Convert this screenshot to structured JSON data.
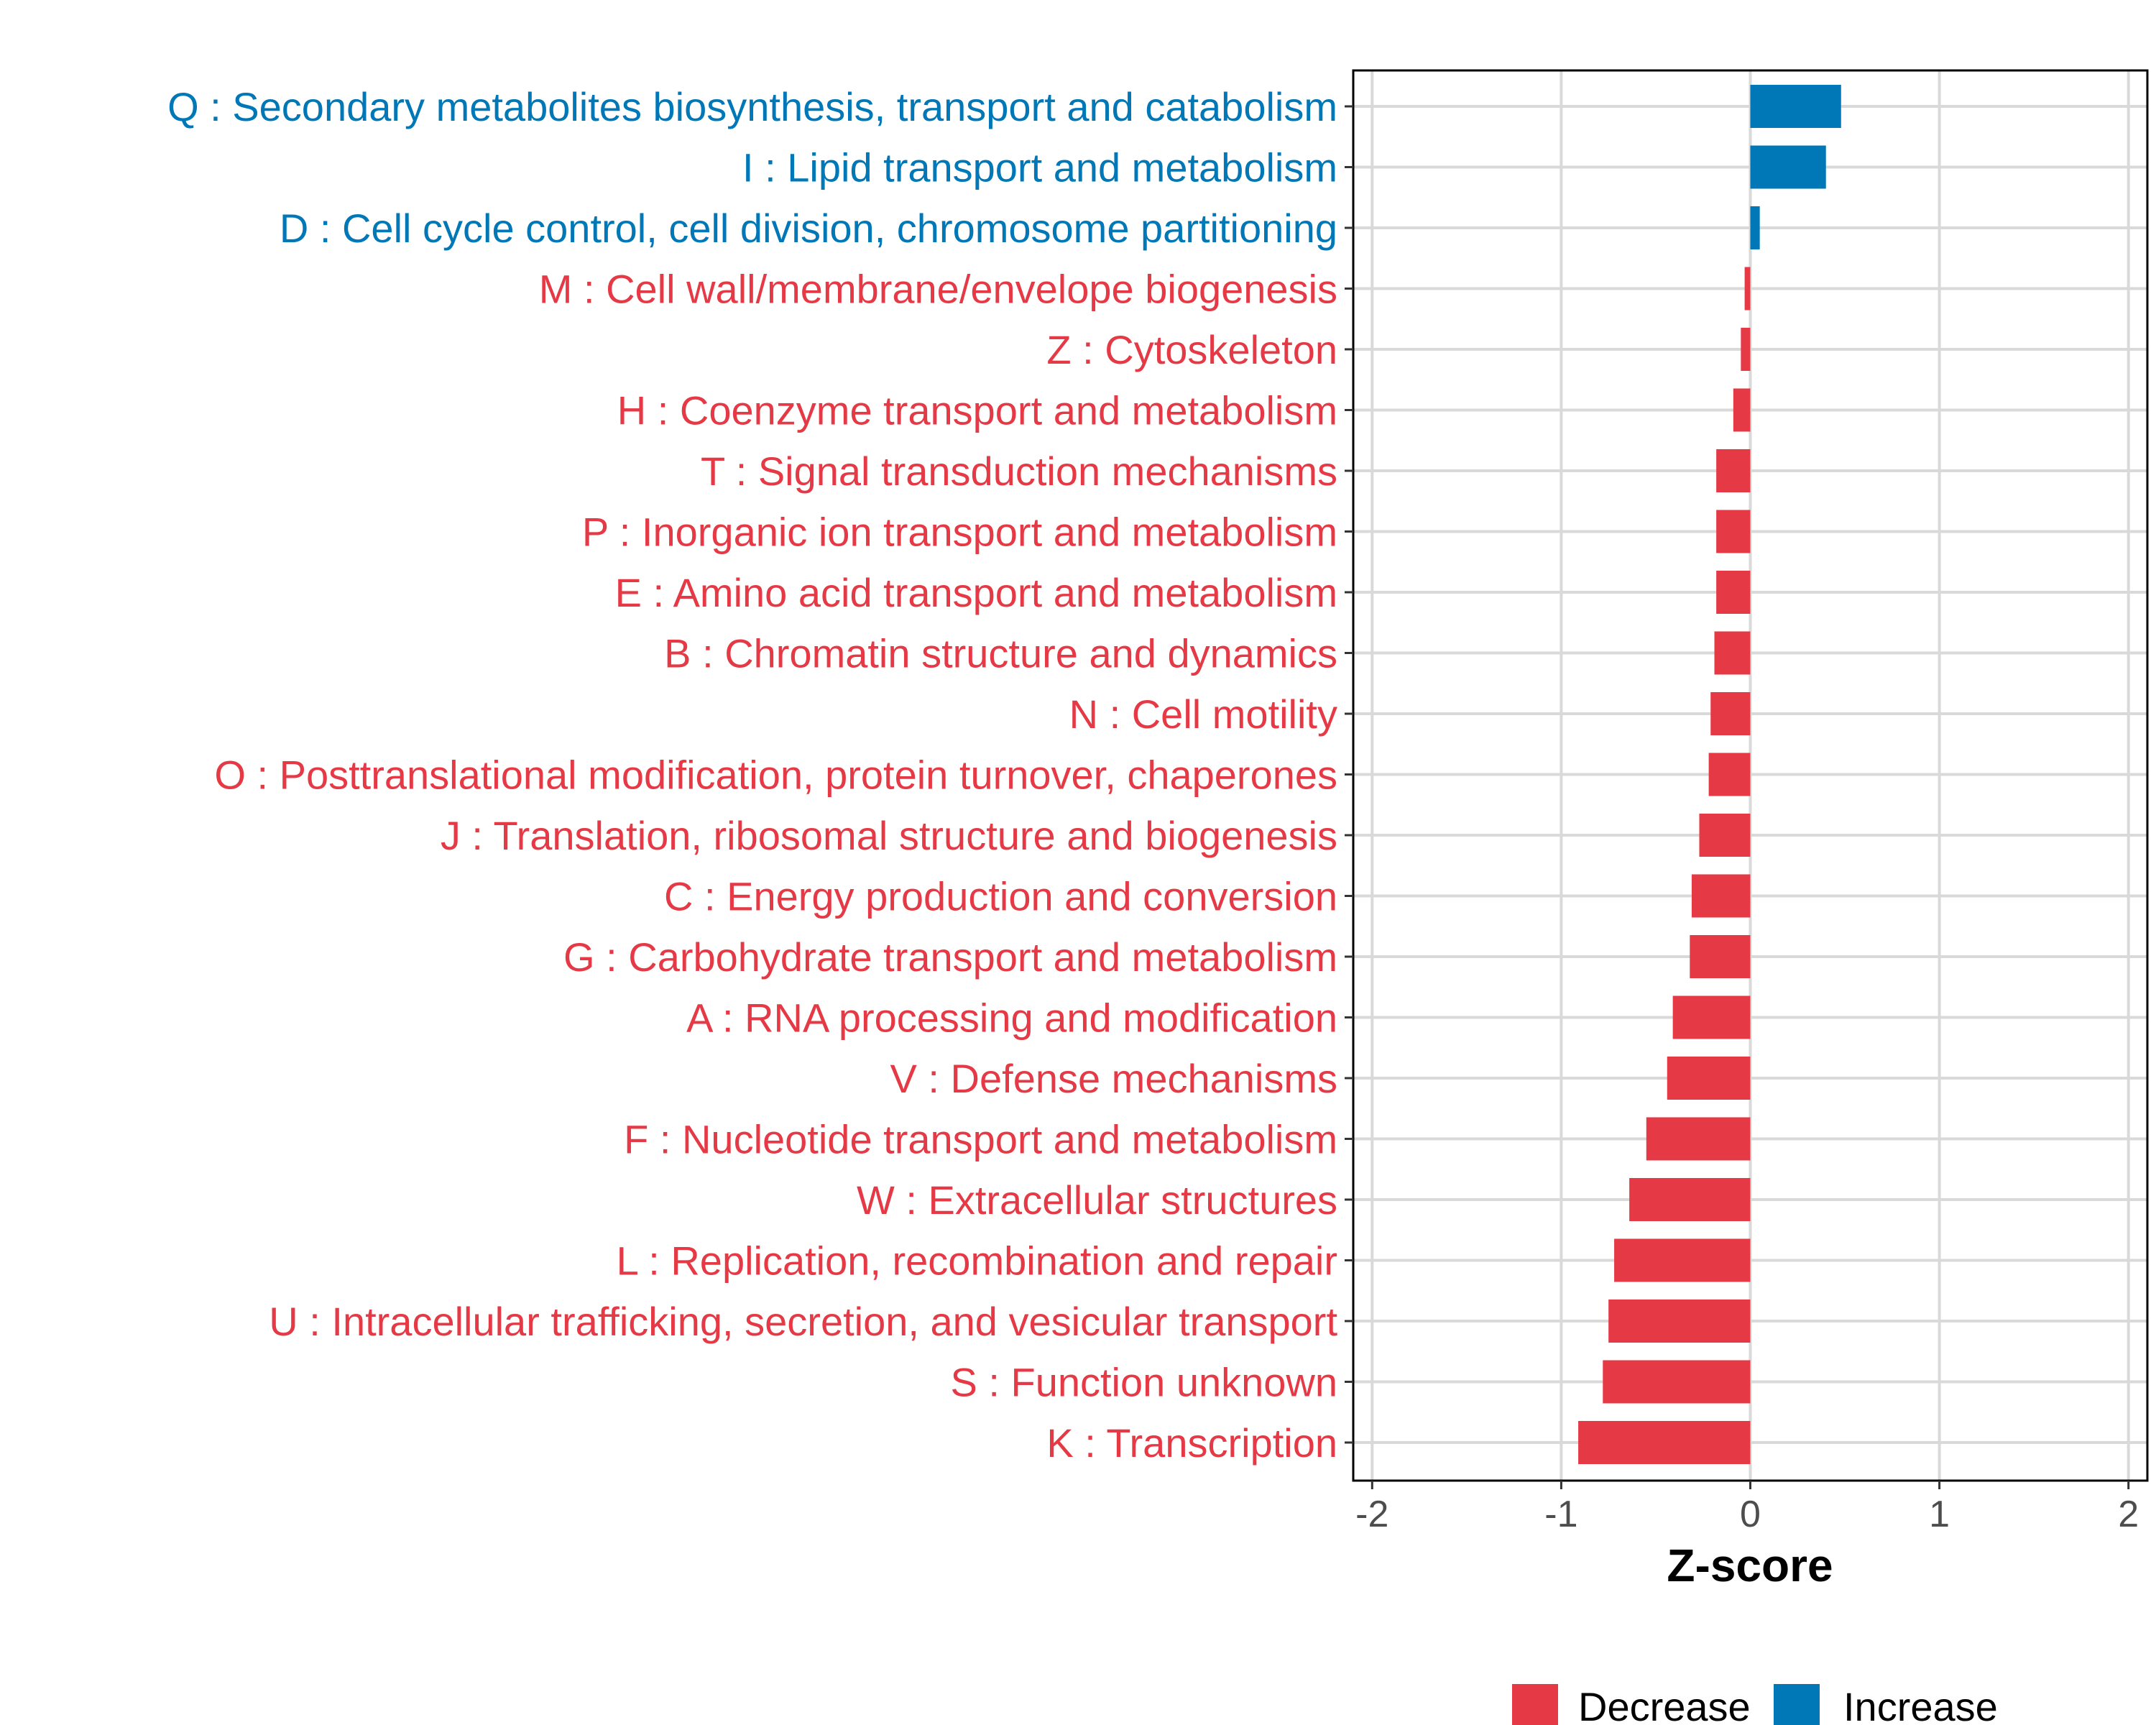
{
  "chart_data": {
    "type": "bar",
    "orientation": "horizontal",
    "title": "",
    "xlabel": "Z-score",
    "ylabel": "",
    "xlim": [
      -2.1,
      2.1
    ],
    "xticks": [
      -2,
      -1,
      0,
      1,
      2
    ],
    "xtick_labels": [
      "-2",
      "-1",
      "0",
      "1",
      "2"
    ],
    "grid": true,
    "legend_position": "bottom",
    "legend": [
      {
        "key": "decrease",
        "label": "Decrease",
        "color": "#e63946"
      },
      {
        "key": "increase",
        "label": "Increase",
        "color": "#0077b6"
      }
    ],
    "categories": [
      "Q : Secondary metabolites biosynthesis, transport and catabolism",
      "I : Lipid transport and metabolism",
      "D : Cell cycle control, cell division, chromosome partitioning",
      "M : Cell wall/membrane/envelope biogenesis",
      "Z : Cytoskeleton",
      "H : Coenzyme transport and metabolism",
      "T : Signal transduction mechanisms",
      "P : Inorganic ion transport and metabolism",
      "E : Amino acid transport and metabolism",
      "B : Chromatin structure and dynamics",
      "N : Cell motility",
      "O : Posttranslational modification, protein turnover, chaperones",
      "J : Translation, ribosomal structure and biogenesis",
      "C : Energy production and conversion",
      "G : Carbohydrate transport and metabolism",
      "A : RNA processing and modification",
      "V : Defense mechanisms",
      "F : Nucleotide transport and metabolism",
      "W : Extracellular structures",
      "L : Replication, recombination and repair",
      "U : Intracellular trafficking, secretion, and vesicular transport",
      "S : Function unknown",
      "K : Transcription"
    ],
    "values": [
      0.48,
      0.4,
      0.05,
      -0.03,
      -0.05,
      -0.09,
      -0.18,
      -0.18,
      -0.18,
      -0.19,
      -0.21,
      -0.22,
      -0.27,
      -0.31,
      -0.32,
      -0.41,
      -0.44,
      -0.55,
      -0.64,
      -0.72,
      -0.75,
      -0.78,
      -0.91
    ],
    "groups": [
      "increase",
      "increase",
      "increase",
      "decrease",
      "decrease",
      "decrease",
      "decrease",
      "decrease",
      "decrease",
      "decrease",
      "decrease",
      "decrease",
      "decrease",
      "decrease",
      "decrease",
      "decrease",
      "decrease",
      "decrease",
      "decrease",
      "decrease",
      "decrease",
      "decrease",
      "decrease"
    ]
  }
}
